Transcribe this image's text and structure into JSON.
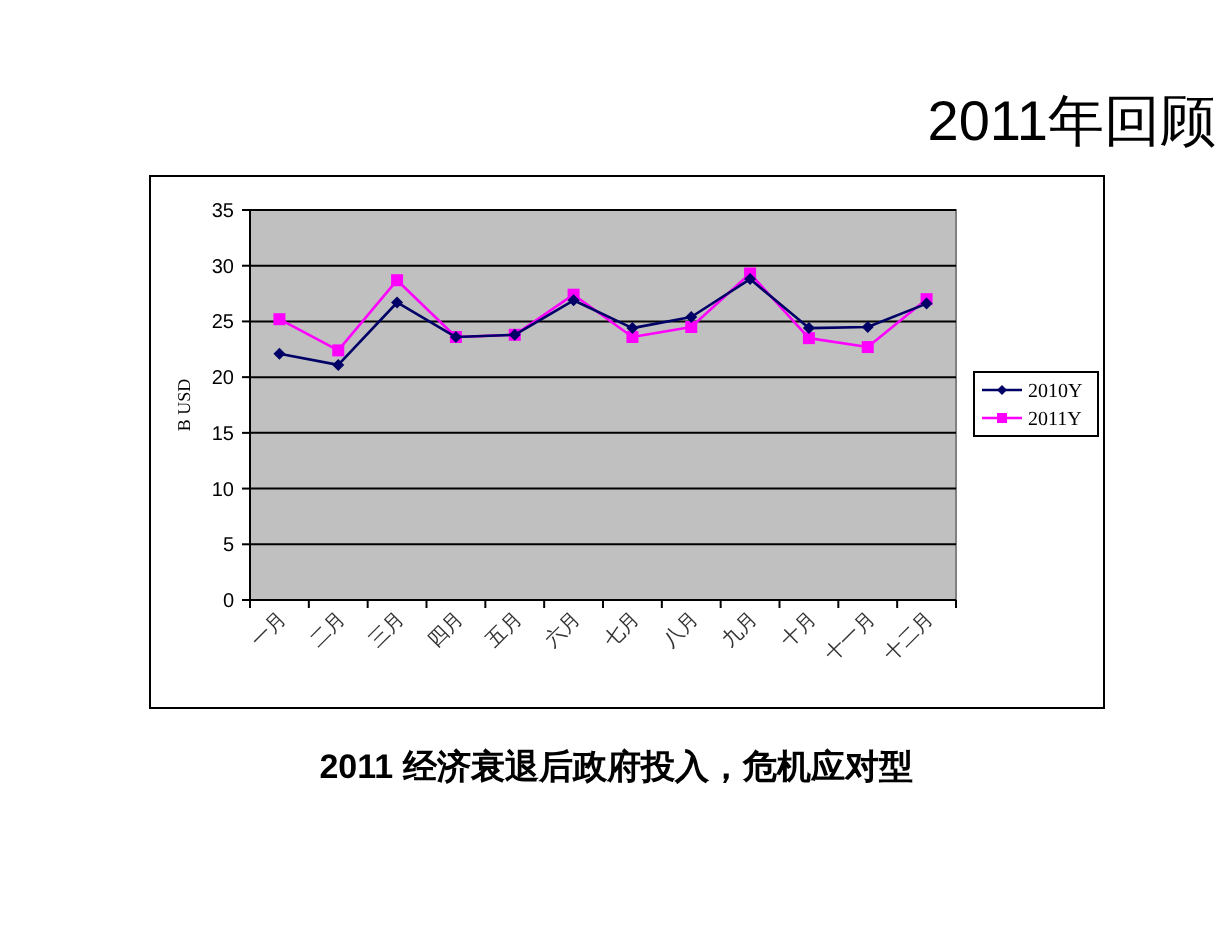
{
  "chart_data": {
    "type": "line",
    "title": "2011年回顾",
    "ylabel": "B USD",
    "annotations": [
      "2011 经济衰退后政府投入，危机应对型"
    ],
    "categories": [
      "一月",
      "二月",
      "三月",
      "四月",
      "五月",
      "六月",
      "七月",
      "八月",
      "九月",
      "十月",
      "十一月",
      "十二月"
    ],
    "series": [
      {
        "name": "2010Y",
        "color": "#000066",
        "marker": "diamond",
        "values": [
          22.1,
          21.1,
          26.7,
          23.6,
          23.8,
          26.9,
          24.4,
          25.4,
          28.8,
          24.4,
          24.5,
          26.6
        ]
      },
      {
        "name": "2011Y",
        "color": "#ff00ff",
        "marker": "square",
        "values": [
          25.2,
          22.4,
          28.7,
          23.6,
          23.8,
          27.4,
          23.6,
          24.5,
          29.3,
          23.5,
          22.7,
          27.0
        ]
      }
    ],
    "ylim": [
      0,
      35
    ],
    "yticks": [
      0,
      5,
      10,
      15,
      20,
      25,
      30,
      35
    ],
    "grid": "y",
    "legend": "right"
  }
}
